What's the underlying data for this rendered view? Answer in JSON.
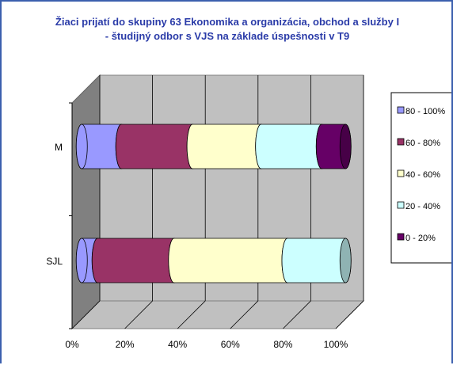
{
  "chart_data": {
    "type": "bar",
    "stacked": "100%",
    "orientation": "horizontal",
    "style": "3d-cylinder",
    "title_line1": "Žiaci prijatí do skupiny 63 Ekonomika a organizácia, obchod a služby I",
    "title_line2": "- študijný odbor s VJS na základe úspešnosti v T9",
    "categories": [
      "M",
      "SJL"
    ],
    "series": [
      {
        "name": "80 - 100%",
        "color": "#9999ff",
        "values": [
          15,
          6
        ]
      },
      {
        "name": "60 - 80%",
        "color": "#993366",
        "values": [
          27,
          29
        ]
      },
      {
        "name": "40 - 60%",
        "color": "#ffffcc",
        "values": [
          26,
          43
        ]
      },
      {
        "name": "20 - 40%",
        "color": "#ccffff",
        "values": [
          23,
          22
        ]
      },
      {
        "name": "0 - 20%",
        "color": "#660066",
        "values": [
          9,
          0
        ]
      }
    ],
    "x_ticks": [
      "0%",
      "20%",
      "40%",
      "60%",
      "80%",
      "100%"
    ],
    "xlim": [
      0,
      100
    ],
    "grid": true,
    "legend_position": "right",
    "title_color": "#2a3ba8",
    "wall_color": "#c0c0c0",
    "side_wall_color": "#808080"
  }
}
